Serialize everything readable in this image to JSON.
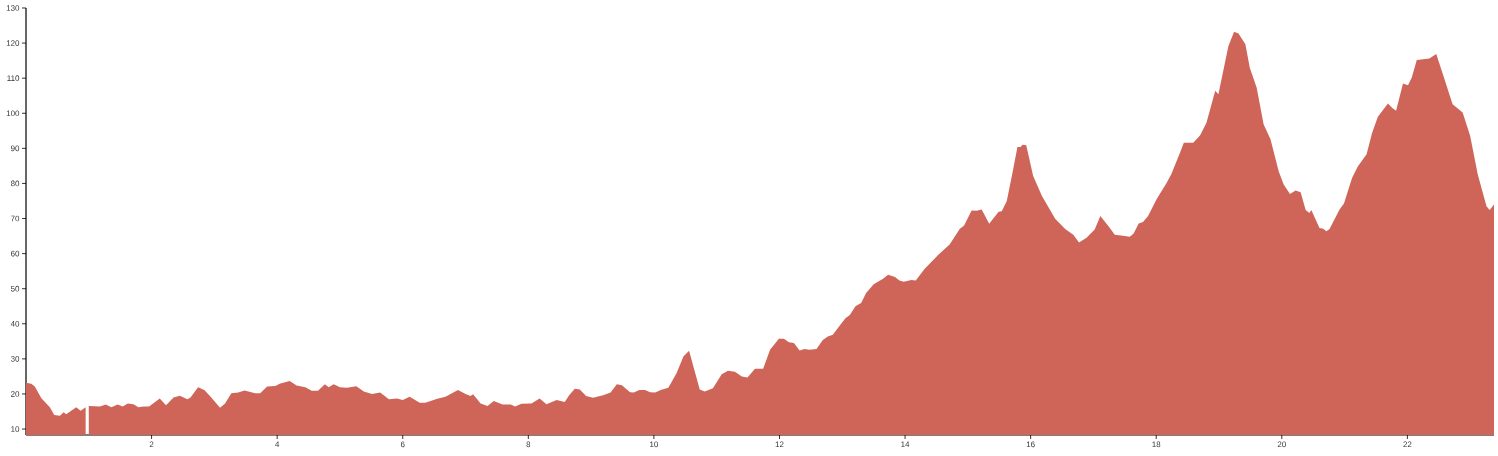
{
  "chart_data": {
    "type": "area",
    "color": "#cf6559",
    "xlim": [
      0,
      23.38
    ],
    "ylim": [
      8.3,
      130
    ],
    "xticks": [
      2,
      4,
      6,
      8,
      10,
      12,
      14,
      16,
      18,
      20,
      22
    ],
    "yticks": [
      10,
      20,
      30,
      40,
      50,
      60,
      70,
      80,
      90,
      100,
      110,
      120,
      130
    ],
    "x": [
      0,
      0.085,
      0.14,
      0.245,
      0.38,
      0.45,
      0.54,
      0.6,
      0.64,
      0.8,
      0.87,
      0.95,
      0.97,
      1.0,
      1.18,
      1.27,
      1.36,
      1.46,
      1.54,
      1.62,
      1.71,
      1.79,
      1.87,
      1.96,
      2.13,
      2.23,
      2.35,
      2.45,
      2.57,
      2.62,
      2.74,
      2.84,
      2.94,
      3.09,
      3.17,
      3.27,
      3.38,
      3.48,
      3.65,
      3.73,
      3.84,
      3.97,
      4.05,
      4.2,
      4.31,
      4.45,
      4.55,
      4.65,
      4.76,
      4.82,
      4.9,
      5.0,
      5.11,
      5.26,
      5.38,
      5.51,
      5.64,
      5.78,
      5.91,
      6.0,
      6.11,
      6.27,
      6.36,
      6.55,
      6.68,
      6.88,
      7.0,
      7.08,
      7.12,
      7.24,
      7.35,
      7.45,
      7.59,
      7.72,
      7.79,
      7.89,
      8.05,
      8.18,
      8.29,
      8.45,
      8.58,
      8.65,
      8.74,
      8.82,
      8.92,
      9.03,
      9.19,
      9.31,
      9.41,
      9.49,
      9.62,
      9.68,
      9.77,
      9.86,
      9.94,
      10.02,
      10.12,
      10.23,
      10.36,
      10.47,
      10.56,
      10.73,
      10.81,
      10.94,
      11.08,
      11.18,
      11.29,
      11.4,
      11.49,
      11.61,
      11.74,
      11.85,
      11.99,
      12.07,
      12.15,
      12.23,
      12.32,
      12.4,
      12.48,
      12.59,
      12.69,
      12.77,
      12.85,
      12.93,
      13.05,
      13.12,
      13.21,
      13.3,
      13.38,
      13.5,
      13.65,
      13.73,
      13.84,
      13.91,
      13.98,
      14.1,
      14.17,
      14.31,
      14.53,
      14.71,
      14.87,
      14.94,
      15.06,
      15.14,
      15.22,
      15.34,
      15.49,
      15.54,
      15.62,
      15.71,
      15.79,
      15.84,
      15.87,
      15.93,
      16.04,
      16.18,
      16.39,
      16.55,
      16.68,
      16.77,
      16.89,
      17.02,
      17.11,
      17.24,
      17.34,
      17.47,
      17.58,
      17.64,
      17.72,
      17.79,
      17.87,
      18.01,
      18.16,
      18.24,
      18.38,
      18.44,
      18.59,
      18.7,
      18.8,
      18.94,
      18.99,
      19.15,
      19.24,
      19.31,
      19.42,
      19.49,
      19.6,
      19.71,
      19.82,
      19.95,
      20.03,
      20.13,
      20.22,
      20.3,
      20.38,
      20.44,
      20.47,
      20.6,
      20.66,
      20.71,
      20.76,
      20.92,
      20.99,
      21.12,
      21.21,
      21.35,
      21.44,
      21.53,
      21.69,
      21.76,
      21.82,
      21.93,
      22.01,
      22.07,
      22.15,
      22.35,
      22.46,
      22.56,
      22.72,
      22.88,
      23.0,
      23.12,
      23.26,
      23.31,
      23.38
    ],
    "values": [
      23.2,
      22.9,
      22.1,
      18.8,
      16.2,
      14.0,
      13.8,
      14.8,
      14.2,
      16.2,
      15.2,
      16.2,
      null,
      16.6,
      16.4,
      17.0,
      16.2,
      17.0,
      16.4,
      17.3,
      17.1,
      16.2,
      16.4,
      16.4,
      18.7,
      16.8,
      19.0,
      19.5,
      18.5,
      19.0,
      21.9,
      21.1,
      19.2,
      16.1,
      17.3,
      20.2,
      20.4,
      21.0,
      20.2,
      20.2,
      22.1,
      22.3,
      23.0,
      23.7,
      22.4,
      21.9,
      20.9,
      20.9,
      22.8,
      21.9,
      22.8,
      21.9,
      21.8,
      22.2,
      20.7,
      20.0,
      20.4,
      18.5,
      18.7,
      18.3,
      19.2,
      17.5,
      17.5,
      18.6,
      19.2,
      21.1,
      20.0,
      19.4,
      19.9,
      17.3,
      16.6,
      18.0,
      17.0,
      17.0,
      16.4,
      17.2,
      17.3,
      18.7,
      17.1,
      18.3,
      17.7,
      19.6,
      21.5,
      21.3,
      19.4,
      18.9,
      19.6,
      20.4,
      22.8,
      22.5,
      20.5,
      20.4,
      21.1,
      21.1,
      20.5,
      20.4,
      21.2,
      21.8,
      25.9,
      30.7,
      32.3,
      21.3,
      20.7,
      21.6,
      25.6,
      26.6,
      26.3,
      25.0,
      24.7,
      27.2,
      27.2,
      32.6,
      35.7,
      35.7,
      34.7,
      34.5,
      32.4,
      32.8,
      32.6,
      32.8,
      35.4,
      36.4,
      36.9,
      38.8,
      41.6,
      42.5,
      45.0,
      45.9,
      48.8,
      51.3,
      52.8,
      54.0,
      53.3,
      52.3,
      52.0,
      52.5,
      52.3,
      55.6,
      59.7,
      62.6,
      67.0,
      68.0,
      72.3,
      72.2,
      72.6,
      68.5,
      71.9,
      72.1,
      75.0,
      83.0,
      90.4,
      90.4,
      91.0,
      90.9,
      82.1,
      76.4,
      69.9,
      67.0,
      65.4,
      63.2,
      64.5,
      66.9,
      70.7,
      67.8,
      65.4,
      65.1,
      64.8,
      65.7,
      68.6,
      69.0,
      70.7,
      75.6,
      80.0,
      82.6,
      88.8,
      91.6,
      91.6,
      93.7,
      97.3,
      106.4,
      105.4,
      119.2,
      123.2,
      122.7,
      119.7,
      113.0,
      107.3,
      96.9,
      92.6,
      83.5,
      79.7,
      77.0,
      78.0,
      77.5,
      72.4,
      71.6,
      72.4,
      67.3,
      67.1,
      66.4,
      67.0,
      72.6,
      74.3,
      81.6,
      84.8,
      88.3,
      94.5,
      99.0,
      102.8,
      101.5,
      100.7,
      108.5,
      108.0,
      110.2,
      115.2,
      115.6,
      116.9,
      111.4,
      102.6,
      100.2,
      93.5,
      82.6,
      73.5,
      72.4,
      74.0
    ]
  }
}
